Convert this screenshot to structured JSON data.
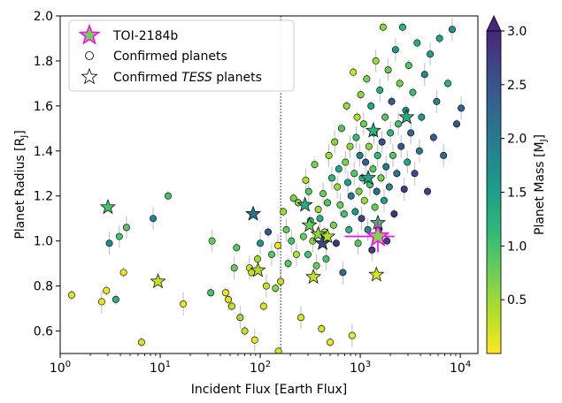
{
  "chart_data": {
    "type": "scatter",
    "xlabel": "Incident Flux [Earth Flux]",
    "ylabel": "Planet Radius [R",
    "ylabel_sub": "J",
    "ylabel_close": "]",
    "colorbar_label": "Planet Mass [M",
    "colorbar_label_sub": "J",
    "colorbar_label_close": "]",
    "x_scale": "log",
    "xlim": [
      1,
      15000
    ],
    "ylim": [
      0.5,
      2.0
    ],
    "clim": [
      0.0,
      3.0
    ],
    "colormap": "viridis",
    "x_ticks": [
      {
        "value": 1,
        "base": "10",
        "exp": "0"
      },
      {
        "value": 10,
        "base": "10",
        "exp": "1"
      },
      {
        "value": 100,
        "base": "10",
        "exp": "2"
      },
      {
        "value": 1000,
        "base": "10",
        "exp": "3"
      },
      {
        "value": 10000,
        "base": "10",
        "exp": "4"
      }
    ],
    "y_ticks": [
      "0.6",
      "0.8",
      "1.0",
      "1.2",
      "1.4",
      "1.6",
      "1.8",
      "2.0"
    ],
    "colorbar_ticks": [
      "0.5",
      "1.0",
      "1.5",
      "2.0",
      "2.5",
      "3.0"
    ],
    "vline_x": 160,
    "legend_position": "top-left",
    "legend": [
      {
        "label": "TOI-2184b",
        "italic": ""
      },
      {
        "label": "Confirmed planets",
        "italic": ""
      },
      {
        "label": "Confirmed ",
        "italic": "TESS",
        "suffix": " planets"
      }
    ],
    "target": {
      "x": 1500,
      "y": 1.02,
      "xerr": [
        700,
        2200
      ],
      "yerr": [
        0.95,
        1.09
      ],
      "mass": 0.65,
      "name": "TOI-2184b"
    },
    "confirmed_planets": [
      [
        1.3,
        0.76,
        0.2
      ],
      [
        2.6,
        0.73,
        0.15
      ],
      [
        2.9,
        0.78,
        0.1
      ],
      [
        3.1,
        0.99,
        1.8
      ],
      [
        3.6,
        0.74,
        1.2
      ],
      [
        3.9,
        1.02,
        1.0
      ],
      [
        4.3,
        0.86,
        0.1
      ],
      [
        4.6,
        1.06,
        0.9
      ],
      [
        6.5,
        0.55,
        0.2
      ],
      [
        8.5,
        1.1,
        1.9
      ],
      [
        12,
        1.2,
        1.0
      ],
      [
        17,
        0.72,
        0.1
      ],
      [
        32,
        0.77,
        1.0
      ],
      [
        33,
        1.0,
        0.8
      ],
      [
        45,
        0.77,
        0.1
      ],
      [
        48,
        0.74,
        0.2
      ],
      [
        52,
        0.71,
        0.3
      ],
      [
        55,
        0.88,
        0.8
      ],
      [
        58,
        0.97,
        0.9
      ],
      [
        63,
        0.66,
        0.5
      ],
      [
        70,
        0.6,
        0.3
      ],
      [
        78,
        0.88,
        0.2
      ],
      [
        82,
        0.86,
        0.3
      ],
      [
        88,
        0.56,
        0.1
      ],
      [
        94,
        0.92,
        0.5
      ],
      [
        100,
        0.99,
        1.6
      ],
      [
        108,
        0.71,
        0.2
      ],
      [
        115,
        0.8,
        0.3
      ],
      [
        120,
        1.04,
        2.5
      ],
      [
        130,
        0.94,
        0.9
      ],
      [
        142,
        0.79,
        0.6
      ],
      [
        150,
        0.98,
        0.1
      ],
      [
        152,
        0.51,
        0.2
      ],
      [
        160,
        0.82,
        0.3
      ],
      [
        170,
        1.13,
        0.5
      ],
      [
        182,
        1.05,
        0.8
      ],
      [
        190,
        0.9,
        0.9
      ],
      [
        205,
        1.0,
        1.0
      ],
      [
        215,
        1.19,
        0.7
      ],
      [
        230,
        0.94,
        0.4
      ],
      [
        240,
        1.17,
        0.6
      ],
      [
        255,
        0.66,
        0.2
      ],
      [
        270,
        1.02,
        0.8
      ],
      [
        285,
        1.27,
        0.4
      ],
      [
        300,
        0.94,
        1.0
      ],
      [
        305,
        1.22,
        0.9
      ],
      [
        318,
        1.09,
        1.2
      ],
      [
        335,
        1.0,
        0.6
      ],
      [
        350,
        1.34,
        0.7
      ],
      [
        365,
        0.89,
        0.8
      ],
      [
        380,
        1.14,
        0.5
      ],
      [
        395,
        1.1,
        1.3
      ],
      [
        410,
        0.61,
        0.2
      ],
      [
        425,
        1.21,
        0.8
      ],
      [
        440,
        1.04,
        0.4
      ],
      [
        455,
        0.92,
        1.0
      ],
      [
        470,
        1.17,
        0.9
      ],
      [
        485,
        1.38,
        0.5
      ],
      [
        500,
        0.55,
        0.1
      ],
      [
        520,
        1.28,
        1.1
      ],
      [
        540,
        1.07,
        0.7
      ],
      [
        555,
        1.44,
        0.6
      ],
      [
        575,
        0.99,
        2.9
      ],
      [
        590,
        1.24,
        0.5
      ],
      [
        610,
        1.32,
        1.4
      ],
      [
        630,
        1.16,
        0.8
      ],
      [
        650,
        1.5,
        0.9
      ],
      [
        670,
        0.86,
        2.2
      ],
      [
        690,
        1.12,
        1.0
      ],
      [
        710,
        1.35,
        0.7
      ],
      [
        730,
        1.6,
        0.5
      ],
      [
        750,
        1.26,
        1.5
      ],
      [
        770,
        1.05,
        1.2
      ],
      [
        790,
        1.42,
        0.6
      ],
      [
        810,
        1.2,
        2.0
      ],
      [
        830,
        0.58,
        0.1
      ],
      [
        850,
        1.75,
        0.3
      ],
      [
        870,
        1.3,
        0.9
      ],
      [
        890,
        1.13,
        1.6
      ],
      [
        910,
        1.46,
        1.1
      ],
      [
        930,
        1.55,
        0.4
      ],
      [
        950,
        0.99,
        0.9
      ],
      [
        970,
        1.22,
        0.7
      ],
      [
        990,
        1.38,
        1.9
      ],
      [
        1010,
        1.65,
        0.6
      ],
      [
        1030,
        1.1,
        2.7
      ],
      [
        1050,
        1.28,
        1.2
      ],
      [
        1080,
        1.52,
        0.8
      ],
      [
        1100,
        1.18,
        0.5
      ],
      [
        1130,
        1.35,
        2.4
      ],
      [
        1160,
        1.72,
        0.7
      ],
      [
        1190,
        1.05,
        1.8
      ],
      [
        1220,
        1.42,
        0.6
      ],
      [
        1250,
        1.25,
        1.0
      ],
      [
        1280,
        1.6,
        1.4
      ],
      [
        1310,
        0.96,
        2.8
      ],
      [
        1340,
        1.32,
        0.9
      ],
      [
        1370,
        1.48,
        1.7
      ],
      [
        1400,
        1.15,
        0.8
      ],
      [
        1430,
        1.8,
        0.5
      ],
      [
        1460,
        1.22,
        2.2
      ],
      [
        1490,
        1.38,
        1.1
      ],
      [
        1530,
        1.05,
        2.9
      ],
      [
        1570,
        1.67,
        1.3
      ],
      [
        1610,
        1.28,
        0.7
      ],
      [
        1650,
        1.44,
        2.6
      ],
      [
        1690,
        1.95,
        0.6
      ],
      [
        1730,
        1.18,
        1.5
      ],
      [
        1770,
        1.55,
        0.9
      ],
      [
        1810,
        1.33,
        2.0
      ],
      [
        1850,
        1.0,
        2.7
      ],
      [
        1900,
        1.76,
        0.8
      ],
      [
        1950,
        1.24,
        1.9
      ],
      [
        2000,
        1.48,
        1.2
      ],
      [
        2060,
        1.62,
        2.4
      ],
      [
        2120,
        1.38,
        0.9
      ],
      [
        2180,
        1.12,
        2.9
      ],
      [
        2250,
        1.85,
        1.6
      ],
      [
        2320,
        1.3,
        2.1
      ],
      [
        2400,
        1.52,
        1.0
      ],
      [
        2480,
        1.7,
        0.7
      ],
      [
        2560,
        1.42,
        2.5
      ],
      [
        2650,
        1.95,
        1.2
      ],
      [
        2750,
        1.23,
        2.8
      ],
      [
        2850,
        1.58,
        1.7
      ],
      [
        2950,
        1.35,
        1.4
      ],
      [
        3050,
        1.78,
        0.9
      ],
      [
        3200,
        1.48,
        2.3
      ],
      [
        3350,
        1.66,
        1.1
      ],
      [
        3500,
        1.3,
        2.6
      ],
      [
        3700,
        1.88,
        1.3
      ],
      [
        3900,
        1.4,
        2.0
      ],
      [
        4100,
        1.55,
        1.6
      ],
      [
        4400,
        1.74,
        1.8
      ],
      [
        4700,
        1.22,
        2.7
      ],
      [
        5000,
        1.83,
        1.5
      ],
      [
        5400,
        1.46,
        2.4
      ],
      [
        5800,
        1.62,
        1.9
      ],
      [
        6200,
        1.9,
        1.4
      ],
      [
        6800,
        1.38,
        2.2
      ],
      [
        7500,
        1.7,
        1.2
      ],
      [
        8300,
        1.94,
        1.6
      ],
      [
        9200,
        1.52,
        2.5
      ],
      [
        10200,
        1.59,
        2.3
      ]
    ],
    "tess_planets": [
      [
        3.0,
        1.15,
        1.0
      ],
      [
        9.5,
        0.82,
        0.3
      ],
      [
        85,
        1.12,
        2.1
      ],
      [
        95,
        0.87,
        0.4
      ],
      [
        280,
        1.16,
        1.3
      ],
      [
        310,
        1.07,
        0.8
      ],
      [
        340,
        0.84,
        0.3
      ],
      [
        380,
        1.03,
        0.6
      ],
      [
        420,
        0.99,
        2.6
      ],
      [
        470,
        1.02,
        0.4
      ],
      [
        1200,
        1.28,
        1.4
      ],
      [
        1350,
        1.49,
        1.2
      ],
      [
        1450,
        0.85,
        0.2
      ],
      [
        1500,
        1.08,
        1.0
      ],
      [
        2900,
        1.55,
        1.3
      ]
    ]
  }
}
